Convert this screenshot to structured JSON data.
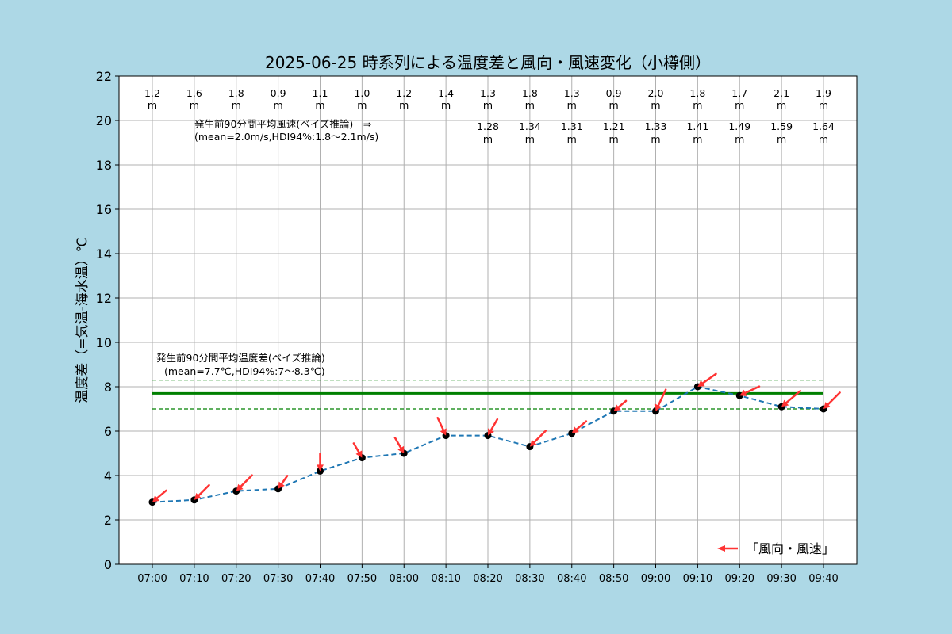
{
  "chart_data": {
    "type": "line",
    "title": "2025-06-25 時系列による温度差と風向・風速変化（小樽側）",
    "ylabel": "温度差（=気温-海水温）℃",
    "xlabel": "",
    "ylim": [
      0,
      22
    ],
    "yticks": [
      0,
      2,
      4,
      6,
      8,
      10,
      12,
      14,
      16,
      18,
      20,
      22
    ],
    "grid": true,
    "categories": [
      "07:00",
      "07:10",
      "07:20",
      "07:30",
      "07:40",
      "07:50",
      "08:00",
      "08:10",
      "08:20",
      "08:30",
      "08:40",
      "08:50",
      "09:00",
      "09:10",
      "09:20",
      "09:30",
      "09:40"
    ],
    "series": [
      {
        "values": [
          2.8,
          2.9,
          3.3,
          3.4,
          4.2,
          4.8,
          5.0,
          5.8,
          5.8,
          5.3,
          5.9,
          6.9,
          6.9,
          8.0,
          7.6,
          7.1,
          7.0
        ],
        "color": "#1f77b4",
        "marker_color": "#000000"
      }
    ],
    "wind_arrow_angles_deg": [
      40,
      45,
      45,
      55,
      90,
      120,
      120,
      115,
      60,
      45,
      40,
      40,
      65,
      35,
      25,
      40,
      45
    ],
    "wind_arrow_color": "#ff3333",
    "wind_speed_labels": [
      "1.2",
      "1.6",
      "1.8",
      "0.9",
      "1.1",
      "1.0",
      "1.2",
      "1.4",
      "1.3",
      "1.8",
      "1.3",
      "0.9",
      "2.0",
      "1.8",
      "1.7",
      "2.1",
      "1.9"
    ],
    "wind_speed_unit": "m",
    "bayes_wind_labels": [
      "1.28",
      "1.34",
      "1.31",
      "1.21",
      "1.33",
      "1.41",
      "1.49",
      "1.59",
      "1.64"
    ],
    "bayes_wind_start_index": 8,
    "bayes_wind_note": [
      "発生前90分間平均風速(ベイズ推論)　⇒",
      "(mean=2.0m/s,HDI94%:1.8～2.1m/s)"
    ],
    "mean_line": {
      "value": 7.7,
      "color": "#008000"
    },
    "hdi_band": {
      "low": 7.0,
      "high": 8.3,
      "color": "#008000"
    },
    "temp_note": [
      "発生前90分間平均温度差(ベイズ推論)",
      "(mean=7.7℃,HDI94%:7～8.3℃)"
    ],
    "legend": {
      "label": "「風向・風速」",
      "placement": "bottom-right"
    }
  }
}
